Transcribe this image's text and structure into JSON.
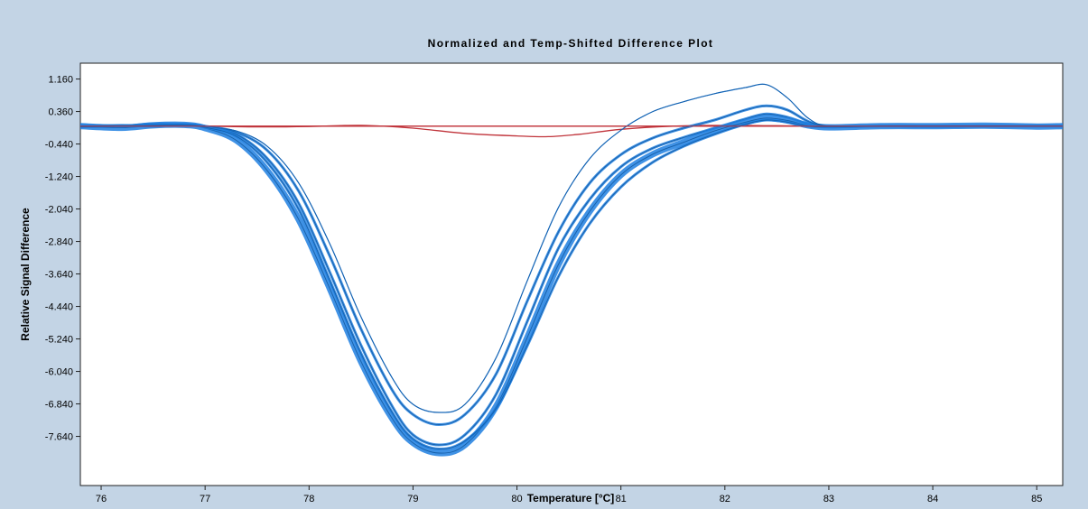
{
  "chart_data": {
    "type": "line",
    "title": "Normalized and Temp-Shifted Difference Plot",
    "xlabel": "Temperature [°C]",
    "ylabel": "Relative Signal Difference",
    "xlim": [
      75.8,
      85.25
    ],
    "ylim": [
      -8.85,
      1.55
    ],
    "x_ticks": [
      76,
      77,
      78,
      79,
      80,
      81,
      82,
      83,
      84,
      85
    ],
    "x_tick_labels": [
      "76",
      "77",
      "78",
      "79",
      "80",
      "81",
      "82",
      "83",
      "84",
      "85"
    ],
    "y_ticks": [
      1.16,
      0.36,
      -0.44,
      -1.24,
      -2.04,
      -2.84,
      -3.64,
      -4.44,
      -5.24,
      -6.04,
      -6.84,
      -7.64
    ],
    "y_tick_labels": [
      "1.160",
      "0.360",
      "-0.440",
      "-1.240",
      "-2.040",
      "-2.840",
      "-3.640",
      "-4.440",
      "-5.240",
      "-6.040",
      "-6.840",
      "-7.640"
    ],
    "grid": false,
    "legend": "none",
    "colors": {
      "blue_series": "#1f7fe0",
      "red_series": "#c0333a",
      "frame_bg": "#c3d4e5",
      "plot_bg": "#ffffff"
    },
    "series": [
      {
        "color": "#1f7fe0",
        "note_count_visible": "many overlapping curves",
        "points": [
          [
            75.8,
            0.02
          ],
          [
            76.2,
            0.0
          ],
          [
            76.5,
            0.06
          ],
          [
            76.8,
            0.04
          ],
          [
            77.0,
            -0.02
          ],
          [
            77.3,
            -0.2
          ],
          [
            77.6,
            -0.8
          ],
          [
            77.9,
            -1.9
          ],
          [
            78.2,
            -3.6
          ],
          [
            78.5,
            -5.4
          ],
          [
            78.8,
            -6.9
          ],
          [
            79.0,
            -7.6
          ],
          [
            79.25,
            -7.85
          ],
          [
            79.5,
            -7.6
          ],
          [
            79.8,
            -6.6
          ],
          [
            80.1,
            -4.8
          ],
          [
            80.4,
            -3.0
          ],
          [
            80.7,
            -1.8
          ],
          [
            81.0,
            -1.0
          ],
          [
            81.3,
            -0.55
          ],
          [
            81.6,
            -0.28
          ],
          [
            81.9,
            -0.05
          ],
          [
            82.2,
            0.18
          ],
          [
            82.4,
            0.3
          ],
          [
            82.6,
            0.22
          ],
          [
            82.8,
            0.06
          ],
          [
            83.0,
            -0.02
          ],
          [
            83.5,
            0.0
          ],
          [
            84.0,
            -0.02
          ],
          [
            84.5,
            0.0
          ],
          [
            85.0,
            0.0
          ],
          [
            85.25,
            0.0
          ]
        ]
      },
      {
        "color": "#1f7fe0",
        "points": [
          [
            75.8,
            0.0
          ],
          [
            76.2,
            -0.04
          ],
          [
            76.5,
            0.02
          ],
          [
            76.8,
            0.03
          ],
          [
            77.0,
            -0.05
          ],
          [
            77.3,
            -0.35
          ],
          [
            77.6,
            -1.1
          ],
          [
            77.9,
            -2.3
          ],
          [
            78.2,
            -4.0
          ],
          [
            78.5,
            -5.8
          ],
          [
            78.8,
            -7.2
          ],
          [
            79.0,
            -7.8
          ],
          [
            79.25,
            -8.05
          ],
          [
            79.5,
            -7.85
          ],
          [
            79.8,
            -6.9
          ],
          [
            80.1,
            -5.2
          ],
          [
            80.4,
            -3.4
          ],
          [
            80.7,
            -2.1
          ],
          [
            81.0,
            -1.2
          ],
          [
            81.3,
            -0.7
          ],
          [
            81.6,
            -0.4
          ],
          [
            81.9,
            -0.12
          ],
          [
            82.2,
            0.1
          ],
          [
            82.4,
            0.2
          ],
          [
            82.6,
            0.14
          ],
          [
            82.8,
            0.02
          ],
          [
            83.0,
            -0.03
          ],
          [
            83.5,
            0.0
          ],
          [
            84.0,
            0.0
          ],
          [
            84.5,
            0.01
          ],
          [
            85.0,
            -0.01
          ],
          [
            85.25,
            0.0
          ]
        ]
      },
      {
        "color": "#1f7fe0",
        "points": [
          [
            75.8,
            0.0
          ],
          [
            76.2,
            0.02
          ],
          [
            76.5,
            0.0
          ],
          [
            76.8,
            0.05
          ],
          [
            77.0,
            0.0
          ],
          [
            77.3,
            -0.15
          ],
          [
            77.6,
            -0.6
          ],
          [
            77.9,
            -1.6
          ],
          [
            78.2,
            -3.2
          ],
          [
            78.5,
            -5.0
          ],
          [
            78.8,
            -6.5
          ],
          [
            79.0,
            -7.1
          ],
          [
            79.25,
            -7.35
          ],
          [
            79.5,
            -7.1
          ],
          [
            79.8,
            -6.1
          ],
          [
            80.1,
            -4.3
          ],
          [
            80.4,
            -2.6
          ],
          [
            80.7,
            -1.4
          ],
          [
            81.0,
            -0.7
          ],
          [
            81.3,
            -0.3
          ],
          [
            81.6,
            -0.05
          ],
          [
            81.9,
            0.15
          ],
          [
            82.2,
            0.4
          ],
          [
            82.4,
            0.5
          ],
          [
            82.6,
            0.4
          ],
          [
            82.8,
            0.12
          ],
          [
            83.0,
            0.0
          ],
          [
            83.5,
            0.0
          ],
          [
            84.0,
            0.0
          ],
          [
            84.5,
            0.0
          ],
          [
            85.0,
            0.0
          ],
          [
            85.25,
            0.0
          ]
        ]
      },
      {
        "color": "#1f7fe0",
        "points": [
          [
            75.8,
            0.0
          ],
          [
            76.3,
            0.03
          ],
          [
            76.8,
            0.04
          ],
          [
            77.0,
            -0.02
          ],
          [
            77.3,
            -0.12
          ],
          [
            77.6,
            -0.5
          ],
          [
            77.9,
            -1.4
          ],
          [
            78.2,
            -2.9
          ],
          [
            78.5,
            -4.7
          ],
          [
            78.8,
            -6.2
          ],
          [
            79.0,
            -6.85
          ],
          [
            79.25,
            -7.05
          ],
          [
            79.5,
            -6.85
          ],
          [
            79.8,
            -5.7
          ],
          [
            80.1,
            -3.8
          ],
          [
            80.4,
            -2.0
          ],
          [
            80.7,
            -0.8
          ],
          [
            81.0,
            -0.1
          ],
          [
            81.3,
            0.35
          ],
          [
            81.6,
            0.6
          ],
          [
            81.9,
            0.8
          ],
          [
            82.2,
            0.95
          ],
          [
            82.4,
            1.02
          ],
          [
            82.6,
            0.7
          ],
          [
            82.8,
            0.2
          ],
          [
            83.0,
            0.0
          ],
          [
            83.5,
            0.0
          ],
          [
            84.0,
            0.0
          ],
          [
            84.5,
            0.0
          ],
          [
            85.0,
            0.0
          ],
          [
            85.25,
            0.0
          ]
        ]
      },
      {
        "color": "#1f7fe0",
        "points": [
          [
            75.8,
            -0.02
          ],
          [
            76.3,
            0.0
          ],
          [
            76.8,
            0.03
          ],
          [
            77.0,
            -0.03
          ],
          [
            77.3,
            -0.25
          ],
          [
            77.6,
            -0.9
          ],
          [
            77.9,
            -2.05
          ],
          [
            78.2,
            -3.8
          ],
          [
            78.5,
            -5.6
          ],
          [
            78.8,
            -7.05
          ],
          [
            79.0,
            -7.7
          ],
          [
            79.25,
            -7.95
          ],
          [
            79.5,
            -7.75
          ],
          [
            79.8,
            -6.95
          ],
          [
            80.1,
            -5.4
          ],
          [
            80.4,
            -3.7
          ],
          [
            80.7,
            -2.4
          ],
          [
            81.0,
            -1.5
          ],
          [
            81.3,
            -0.9
          ],
          [
            81.6,
            -0.5
          ],
          [
            81.9,
            -0.2
          ],
          [
            82.2,
            0.05
          ],
          [
            82.4,
            0.15
          ],
          [
            82.6,
            0.1
          ],
          [
            82.8,
            0.0
          ],
          [
            83.0,
            -0.02
          ],
          [
            83.5,
            0.0
          ],
          [
            84.0,
            0.0
          ],
          [
            84.5,
            0.0
          ],
          [
            85.0,
            0.0
          ],
          [
            85.25,
            0.0
          ]
        ]
      },
      {
        "color": "#c0333a",
        "points": [
          [
            75.8,
            0.0
          ],
          [
            76.5,
            0.0
          ],
          [
            77.0,
            0.0
          ],
          [
            77.5,
            -0.02
          ],
          [
            78.0,
            -0.01
          ],
          [
            78.5,
            0.02
          ],
          [
            79.0,
            -0.05
          ],
          [
            79.5,
            -0.18
          ],
          [
            80.0,
            -0.24
          ],
          [
            80.3,
            -0.26
          ],
          [
            80.6,
            -0.2
          ],
          [
            81.0,
            -0.08
          ],
          [
            81.5,
            0.0
          ],
          [
            82.0,
            0.02
          ],
          [
            82.5,
            0.01
          ],
          [
            83.0,
            0.0
          ],
          [
            84.0,
            0.0
          ],
          [
            85.0,
            0.0
          ],
          [
            85.25,
            0.0
          ]
        ]
      },
      {
        "color": "#c0333a",
        "points": [
          [
            75.8,
            0.0
          ],
          [
            77.0,
            0.0
          ],
          [
            78.0,
            0.0
          ],
          [
            79.0,
            0.0
          ],
          [
            80.0,
            0.0
          ],
          [
            81.0,
            0.0
          ],
          [
            82.0,
            0.0
          ],
          [
            83.0,
            0.0
          ],
          [
            84.0,
            0.0
          ],
          [
            85.25,
            0.0
          ]
        ]
      }
    ]
  }
}
